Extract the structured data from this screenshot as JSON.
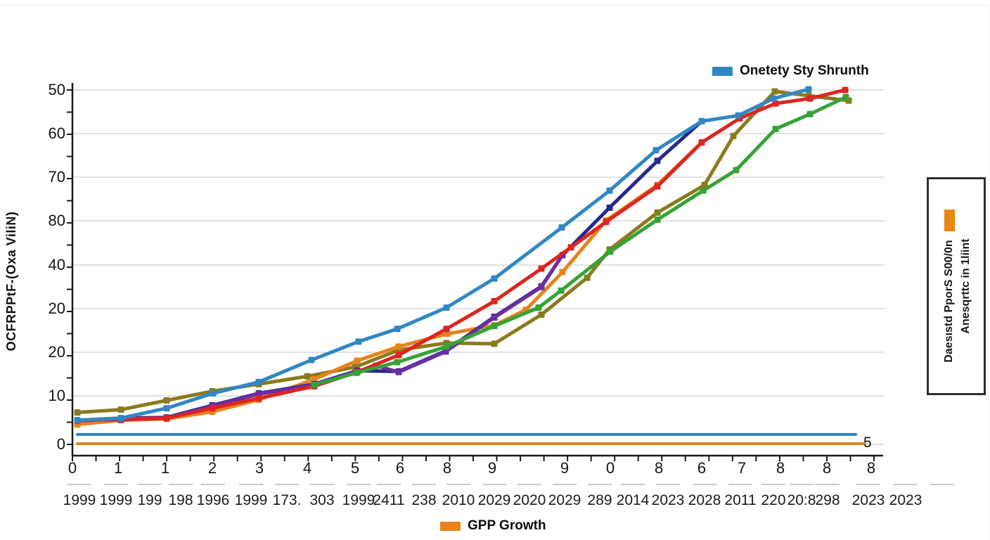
{
  "figure": {
    "background": "#ffffff",
    "axis_color": "#1a1a1a",
    "grid_color": "#d9d9d9"
  },
  "y_axis": {
    "title": "OCFRPPtF-(Oxa ViliN)",
    "ticks": [
      [
        "50",
        128
      ],
      [
        "60",
        190
      ],
      [
        "70",
        252
      ],
      [
        "80",
        314
      ],
      [
        "40",
        377
      ],
      [
        "20",
        439
      ],
      [
        "20",
        501
      ],
      [
        "10",
        563
      ],
      [
        "0",
        632
      ]
    ]
  },
  "x_axis": {
    "row1": [
      [
        "0",
        103
      ],
      [
        "1",
        168
      ],
      [
        "1",
        235
      ],
      [
        "2",
        302
      ],
      [
        "3",
        369
      ],
      [
        "4",
        437
      ],
      [
        "5",
        505
      ],
      [
        "6",
        569
      ],
      [
        "8",
        636
      ],
      [
        "9",
        700
      ],
      [
        "9",
        803
      ],
      [
        "0",
        868
      ],
      [
        "8",
        937
      ],
      [
        "6",
        998
      ],
      [
        "7",
        1055
      ],
      [
        "8",
        1110
      ],
      [
        "8",
        1176
      ],
      [
        "8",
        1239
      ]
    ],
    "row2": [
      [
        "1999",
        113
      ],
      [
        "1999",
        165
      ],
      [
        "199",
        213
      ],
      [
        "198",
        257
      ],
      [
        "1996",
        303
      ],
      [
        "1999",
        357
      ],
      [
        "173.",
        408
      ],
      [
        "303",
        458
      ],
      [
        "1999",
        510
      ],
      [
        "2411",
        553
      ],
      [
        "238",
        603
      ],
      [
        "2010",
        652
      ],
      [
        "2029",
        703
      ],
      [
        "2020",
        753
      ],
      [
        "2029",
        803
      ],
      [
        "289",
        853
      ],
      [
        "2014",
        900
      ],
      [
        "2023",
        950
      ],
      [
        "2028",
        1002
      ],
      [
        "2011",
        1053
      ],
      [
        "220",
        1100
      ],
      [
        "20:8",
        1140
      ],
      [
        "298",
        1177
      ],
      [
        "2023",
        1235
      ],
      [
        "2023",
        1288
      ]
    ],
    "extra_dash_x": 1340
  },
  "legend_top": {
    "label": "Onetety Sty Shrunth",
    "color": "#3187c4"
  },
  "legend_bottom": {
    "label": "GPP Growth",
    "color": "#e6831c"
  },
  "side_panel": {
    "swatch_color": "#e8860d",
    "lines": [
      "Daesıstd PporS S00/0n",
      "Anesqrttc in 1liint"
    ]
  },
  "end_label": "5",
  "chart_data": {
    "type": "line",
    "title": "",
    "xlabel": "",
    "ylabel": "OCFRPPtF-(Oxa ViliN)",
    "ylim": [
      0,
      50
    ],
    "grid": true,
    "legend": [
      "Onetety Sty Shrunth",
      "GPP Growth"
    ],
    "x_tick_labels_row1": [
      "0",
      "1",
      "1",
      "2",
      "3",
      "4",
      "5",
      "6",
      "8",
      "9",
      "9",
      "0",
      "8",
      "6",
      "7",
      "8",
      "8",
      "8"
    ],
    "x_tick_labels_row2": [
      "1999",
      "1999",
      "199",
      "198",
      "1996",
      "1999",
      "173.",
      "303",
      "1999",
      "2411",
      "238",
      "2010",
      "2029",
      "2020",
      "2029",
      "289",
      "2014",
      "2023",
      "2028",
      "2011",
      "220",
      "20:8",
      "298",
      "2023",
      "2023"
    ],
    "y_tick_labels": [
      "50",
      "60",
      "70",
      "80",
      "40",
      "20",
      "20",
      "10",
      "0"
    ],
    "series": [
      {
        "name": "flat-orange",
        "color": "#e6831c",
        "width": 4,
        "markers": false,
        "points": [
          [
            110,
            0.1
          ],
          [
            1230,
            0.1
          ]
        ]
      },
      {
        "name": "flat-blue",
        "color": "#2f7fc0",
        "width": 4,
        "markers": false,
        "points": [
          [
            110,
            1.4
          ],
          [
            1217,
            1.4
          ]
        ]
      },
      {
        "name": "olive",
        "color": "#8b7a1d",
        "width": 5,
        "markers": true,
        "points": [
          [
            110,
            4.5
          ],
          [
            172,
            4.9
          ],
          [
            237,
            6.2
          ],
          [
            302,
            7.5
          ],
          [
            368,
            8.5
          ],
          [
            437,
            9.6
          ],
          [
            505,
            10.9
          ],
          [
            567,
            13.3
          ],
          [
            635,
            14.3
          ],
          [
            703,
            14.2
          ],
          [
            770,
            18.3
          ],
          [
            835,
            23.5
          ],
          [
            867,
            27.5
          ],
          [
            935,
            32.7
          ],
          [
            1002,
            36.6
          ],
          [
            1043,
            43.5
          ],
          [
            1102,
            49.8
          ],
          [
            1150,
            49.2
          ],
          [
            1207,
            48.5
          ]
        ]
      },
      {
        "name": "gpp-growth-orange",
        "color": "#e6831c",
        "width": 5,
        "markers": true,
        "points": [
          [
            110,
            2.8
          ],
          [
            172,
            3.4
          ],
          [
            237,
            3.6
          ],
          [
            302,
            4.6
          ],
          [
            368,
            6.3
          ],
          [
            447,
            9.2
          ],
          [
            508,
            11.8
          ],
          [
            567,
            13.8
          ],
          [
            636,
            15.6
          ],
          [
            703,
            16.8
          ],
          [
            748,
            19.0
          ],
          [
            800,
            24.3
          ],
          [
            862,
            31.6
          ],
          [
            935,
            36.6
          ],
          [
            998,
            42.6
          ]
        ]
      },
      {
        "name": "navy",
        "color": "#27298f",
        "width": 5,
        "markers": true,
        "points": [
          [
            110,
            3.4
          ],
          [
            172,
            3.7
          ],
          [
            237,
            3.8
          ],
          [
            302,
            5.5
          ],
          [
            368,
            7.2
          ],
          [
            447,
            8.5
          ],
          [
            508,
            10.4
          ],
          [
            567,
            10.3
          ],
          [
            634,
            13.2
          ],
          [
            703,
            18.0
          ],
          [
            770,
            22.3
          ],
          [
            800,
            26.7
          ],
          [
            867,
            33.4
          ],
          [
            935,
            40.0
          ],
          [
            998,
            45.6
          ]
        ]
      },
      {
        "name": "purple",
        "color": "#6d2ea0",
        "width": 5,
        "markers": true,
        "points": [
          [
            110,
            3.4
          ],
          [
            172,
            3.5
          ],
          [
            237,
            3.7
          ],
          [
            302,
            5.4
          ],
          [
            368,
            7.1
          ],
          [
            447,
            8.4
          ],
          [
            508,
            10.3
          ],
          [
            535,
            11.1
          ],
          [
            567,
            10.2
          ],
          [
            634,
            13.1
          ],
          [
            703,
            17.9
          ],
          [
            770,
            22.2
          ],
          [
            800,
            26.7
          ]
        ]
      },
      {
        "name": "red",
        "color": "#dd2522",
        "width": 5,
        "markers": true,
        "points": [
          [
            110,
            3.3
          ],
          [
            172,
            3.6
          ],
          [
            237,
            3.7
          ],
          [
            302,
            5.1
          ],
          [
            368,
            6.5
          ],
          [
            447,
            8.2
          ],
          [
            508,
            10.2
          ],
          [
            567,
            12.6
          ],
          [
            635,
            16.3
          ],
          [
            703,
            20.2
          ],
          [
            770,
            24.8
          ],
          [
            812,
            27.8
          ],
          [
            862,
            31.4
          ],
          [
            935,
            36.4
          ],
          [
            998,
            42.6
          ],
          [
            1052,
            46.0
          ],
          [
            1103,
            48.1
          ],
          [
            1152,
            48.8
          ],
          [
            1202,
            50.0
          ]
        ]
      },
      {
        "name": "green",
        "color": "#36a336",
        "width": 5,
        "markers": true,
        "points": [
          [
            447,
            8.4
          ],
          [
            507,
            10.1
          ],
          [
            565,
            11.6
          ],
          [
            635,
            13.8
          ],
          [
            703,
            16.7
          ],
          [
            766,
            19.3
          ],
          [
            798,
            21.7
          ],
          [
            868,
            27.2
          ],
          [
            935,
            31.7
          ],
          [
            1000,
            35.8
          ],
          [
            1047,
            38.7
          ],
          [
            1103,
            44.5
          ],
          [
            1152,
            46.6
          ],
          [
            1203,
            49.0
          ]
        ]
      },
      {
        "name": "onetety-sty-shrunth-blue",
        "color": "#3187c4",
        "width": 5,
        "markers": true,
        "points": [
          [
            110,
            3.4
          ],
          [
            172,
            3.7
          ],
          [
            237,
            5.1
          ],
          [
            303,
            7.2
          ],
          [
            368,
            8.8
          ],
          [
            443,
            11.9
          ],
          [
            510,
            14.5
          ],
          [
            565,
            16.3
          ],
          [
            635,
            19.3
          ],
          [
            703,
            23.4
          ],
          [
            799,
            30.6
          ],
          [
            867,
            35.8
          ],
          [
            933,
            41.5
          ],
          [
            998,
            45.6
          ],
          [
            1050,
            46.4
          ],
          [
            1100,
            48.8
          ],
          [
            1150,
            50.1
          ]
        ]
      }
    ]
  }
}
